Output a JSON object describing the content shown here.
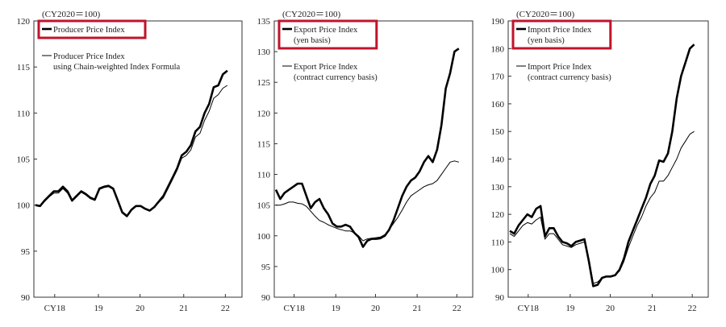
{
  "chart_data": [
    {
      "type": "line",
      "unit_note": "(CY2020＝100)",
      "x_tick_labels": [
        "CY18",
        "19",
        "20",
        "21",
        "22"
      ],
      "ylim": [
        90,
        120
      ],
      "y_ticks": [
        90,
        95,
        100,
        105,
        110,
        115,
        120
      ],
      "legend_placement": "top-left",
      "series": [
        {
          "name": "Producer Price Index",
          "style": "bold",
          "highlighted": true,
          "values": [
            100.0,
            99.9,
            100.5,
            101.0,
            101.5,
            101.5,
            102.0,
            101.5,
            100.5,
            101.0,
            101.5,
            101.2,
            100.8,
            100.6,
            101.8,
            102.0,
            102.1,
            101.8,
            100.5,
            99.2,
            98.8,
            99.5,
            99.9,
            99.9,
            99.6,
            99.4,
            99.8,
            100.4,
            101.0,
            102.0,
            103.0,
            104.0,
            105.4,
            105.8,
            106.5,
            108.0,
            108.5,
            110.0,
            111.0,
            112.8,
            113.0,
            114.2,
            114.6
          ]
        },
        {
          "name": "Producer Price Index\nusing Chain-weighted Index Formula",
          "style": "thin",
          "highlighted": false,
          "values": [
            100.0,
            99.9,
            100.4,
            100.9,
            101.3,
            101.3,
            101.8,
            101.3,
            100.4,
            100.9,
            101.4,
            101.1,
            100.7,
            100.5,
            101.7,
            101.9,
            102.0,
            101.7,
            100.5,
            99.3,
            98.9,
            99.5,
            99.9,
            99.9,
            99.6,
            99.4,
            99.8,
            100.3,
            100.8,
            101.8,
            102.8,
            103.8,
            105.1,
            105.4,
            106.0,
            107.4,
            107.8,
            109.2,
            110.2,
            111.6,
            112.0,
            112.7,
            113.0
          ]
        }
      ]
    },
    {
      "type": "line",
      "unit_note": "(CY2020＝100)",
      "x_tick_labels": [
        "CY18",
        "19",
        "20",
        "21",
        "22"
      ],
      "ylim": [
        90,
        135
      ],
      "y_ticks": [
        90,
        95,
        100,
        105,
        110,
        115,
        120,
        125,
        130,
        135
      ],
      "legend_placement": "top-left",
      "series": [
        {
          "name": "Export Price Index\n(yen basis)",
          "style": "bold",
          "highlighted": true,
          "values": [
            107.5,
            106.0,
            107.0,
            107.5,
            108.0,
            108.5,
            108.5,
            106.5,
            104.5,
            105.5,
            106.0,
            104.5,
            103.5,
            102.0,
            101.5,
            101.5,
            101.8,
            101.5,
            100.5,
            99.8,
            98.2,
            99.2,
            99.5,
            99.5,
            99.6,
            100.0,
            101.0,
            102.5,
            104.5,
            106.5,
            108.0,
            109.0,
            109.5,
            110.5,
            112.0,
            113.0,
            112.0,
            114.0,
            118.0,
            124.0,
            126.5,
            130.0,
            130.5
          ]
        },
        {
          "name": "Export Price Index\n(contract currency basis)",
          "style": "thin",
          "highlighted": false,
          "values": [
            105.0,
            105.0,
            105.2,
            105.5,
            105.5,
            105.3,
            105.2,
            104.8,
            104.0,
            103.2,
            102.5,
            102.2,
            101.8,
            101.5,
            101.2,
            101.0,
            100.8,
            100.8,
            100.5,
            100.0,
            99.2,
            99.5,
            99.6,
            99.7,
            99.8,
            100.2,
            101.0,
            102.0,
            103.0,
            104.2,
            105.5,
            106.5,
            107.0,
            107.5,
            108.0,
            108.3,
            108.5,
            109.0,
            110.0,
            111.0,
            112.0,
            112.2,
            112.0
          ]
        }
      ]
    },
    {
      "type": "line",
      "unit_note": "(CY2020＝100)",
      "x_tick_labels": [
        "CY18",
        "19",
        "20",
        "21",
        "22"
      ],
      "ylim": [
        90,
        190
      ],
      "y_ticks": [
        90,
        100,
        110,
        120,
        130,
        140,
        150,
        160,
        170,
        180,
        190
      ],
      "legend_placement": "top-left",
      "series": [
        {
          "name": "Import Price Index\n(yen basis)",
          "style": "bold",
          "highlighted": true,
          "values": [
            114.0,
            113.0,
            116.0,
            118.0,
            120.0,
            119.0,
            122.0,
            123.0,
            112.0,
            115.0,
            115.0,
            112.0,
            110.0,
            109.5,
            108.5,
            110.0,
            110.5,
            111.0,
            103.0,
            94.0,
            94.5,
            97.0,
            97.5,
            97.5,
            98.0,
            100.0,
            104.0,
            110.0,
            114.0,
            118.0,
            122.0,
            126.0,
            131.0,
            134.0,
            139.5,
            139.0,
            142.0,
            150.0,
            162.0,
            170.0,
            175.0,
            180.0,
            181.5
          ]
        },
        {
          "name": "Import Price Index\n(contract currency basis)",
          "style": "thin",
          "highlighted": false,
          "values": [
            113.0,
            112.0,
            114.0,
            116.0,
            117.0,
            116.5,
            118.0,
            119.0,
            111.0,
            113.0,
            113.0,
            111.0,
            109.0,
            108.5,
            108.0,
            109.0,
            109.5,
            110.0,
            103.0,
            95.0,
            95.5,
            97.0,
            97.5,
            97.5,
            98.0,
            99.5,
            103.0,
            108.0,
            112.0,
            116.0,
            119.0,
            123.0,
            126.0,
            128.0,
            132.0,
            132.0,
            134.0,
            137.0,
            140.0,
            144.0,
            146.5,
            149.0,
            150.0
          ]
        }
      ]
    }
  ],
  "colors": {
    "line": "#000000",
    "highlight_box": "#c0142b",
    "frame": "#333333"
  }
}
